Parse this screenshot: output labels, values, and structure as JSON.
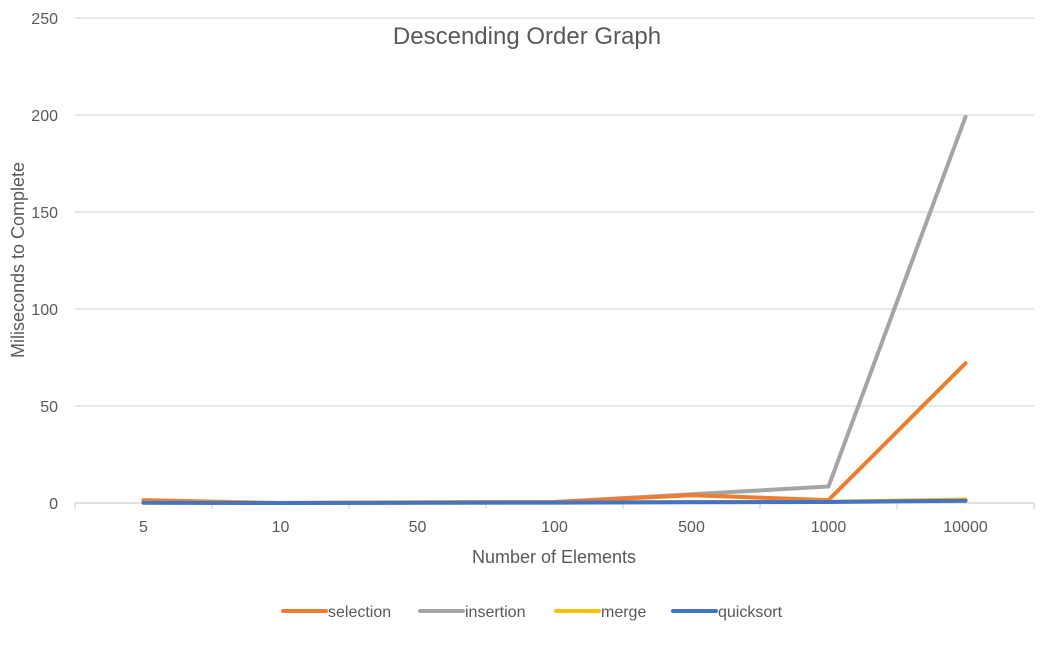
{
  "chart_data": {
    "type": "line",
    "title": "Descending Order Graph",
    "xlabel": "Number of Elements",
    "ylabel": "Miliseconds to Complete",
    "categories": [
      "5",
      "10",
      "50",
      "100",
      "500",
      "1000",
      "10000"
    ],
    "ylim": [
      0,
      250
    ],
    "yticks": [
      0,
      50,
      100,
      150,
      200,
      250
    ],
    "grid": true,
    "legend_position": "bottom",
    "series": [
      {
        "name": "selection",
        "color": "#ED7D31",
        "values": [
          1.5,
          0,
          0.3,
          0.5,
          4,
          1.5,
          72
        ]
      },
      {
        "name": "insertion",
        "color": "#A5A5A5",
        "values": [
          0.3,
          0,
          0.3,
          0.5,
          4.5,
          8.5,
          199
        ]
      },
      {
        "name": "merge",
        "color": "#FFC000",
        "values": [
          0.2,
          0,
          0.1,
          0.2,
          0.5,
          0.6,
          1.8
        ]
      },
      {
        "name": "quicksort",
        "color": "#4472C4",
        "values": [
          0.1,
          0,
          0.1,
          0.2,
          0.4,
          0.5,
          1.2
        ]
      }
    ]
  }
}
